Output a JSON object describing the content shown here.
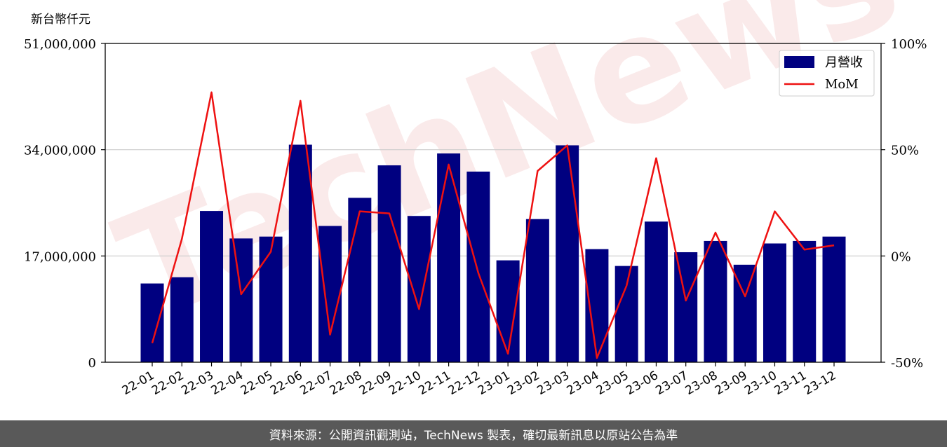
{
  "watermark": "TechNews",
  "footer": {
    "text": "資料來源：公開資訊觀測站，TechNews 製表，確切最新訊息以原站公告為準"
  },
  "chart_data": {
    "type": "bar",
    "unit_label": "新台幣仟元",
    "categories": [
      "22-01",
      "22-02",
      "22-03",
      "22-04",
      "22-05",
      "22-06",
      "22-07",
      "22-08",
      "22-09",
      "22-10",
      "22-11",
      "22-12",
      "23-01",
      "23-02",
      "23-03",
      "23-04",
      "23-05",
      "23-06",
      "23-07",
      "23-08",
      "23-09",
      "23-10",
      "23-11",
      "23-12"
    ],
    "series": [
      {
        "name": "月營收",
        "type": "bar",
        "axis": "left",
        "color": "#000080",
        "values": [
          12600000,
          13600000,
          24200000,
          19800000,
          20100000,
          34800000,
          21800000,
          26300000,
          31500000,
          23400000,
          33400000,
          30500000,
          16300000,
          22900000,
          34700000,
          18100000,
          15400000,
          22500000,
          17600000,
          19400000,
          15600000,
          19000000,
          19400000,
          20100000
        ]
      },
      {
        "name": "MoM",
        "type": "line",
        "axis": "right",
        "color": "#ee1111",
        "values": [
          -41,
          8,
          77,
          -18,
          2,
          73,
          -37,
          21,
          20,
          -25,
          43,
          -8,
          -46,
          40,
          52,
          -48,
          -14,
          46,
          -21,
          11,
          -19,
          21,
          3,
          5
        ]
      }
    ],
    "y_left": {
      "min": 0,
      "max": 51000000,
      "ticks": [
        0,
        17000000,
        34000000,
        51000000
      ],
      "tick_labels": [
        "0",
        "17,000,000",
        "34,000,000",
        "51,000,000"
      ]
    },
    "y_right": {
      "min": -50,
      "max": 100,
      "ticks": [
        -50,
        0,
        50,
        100
      ],
      "tick_labels": [
        "-50%",
        "0%",
        "50%",
        "100%"
      ]
    },
    "grid": "horizontal",
    "legend": "top-right"
  }
}
